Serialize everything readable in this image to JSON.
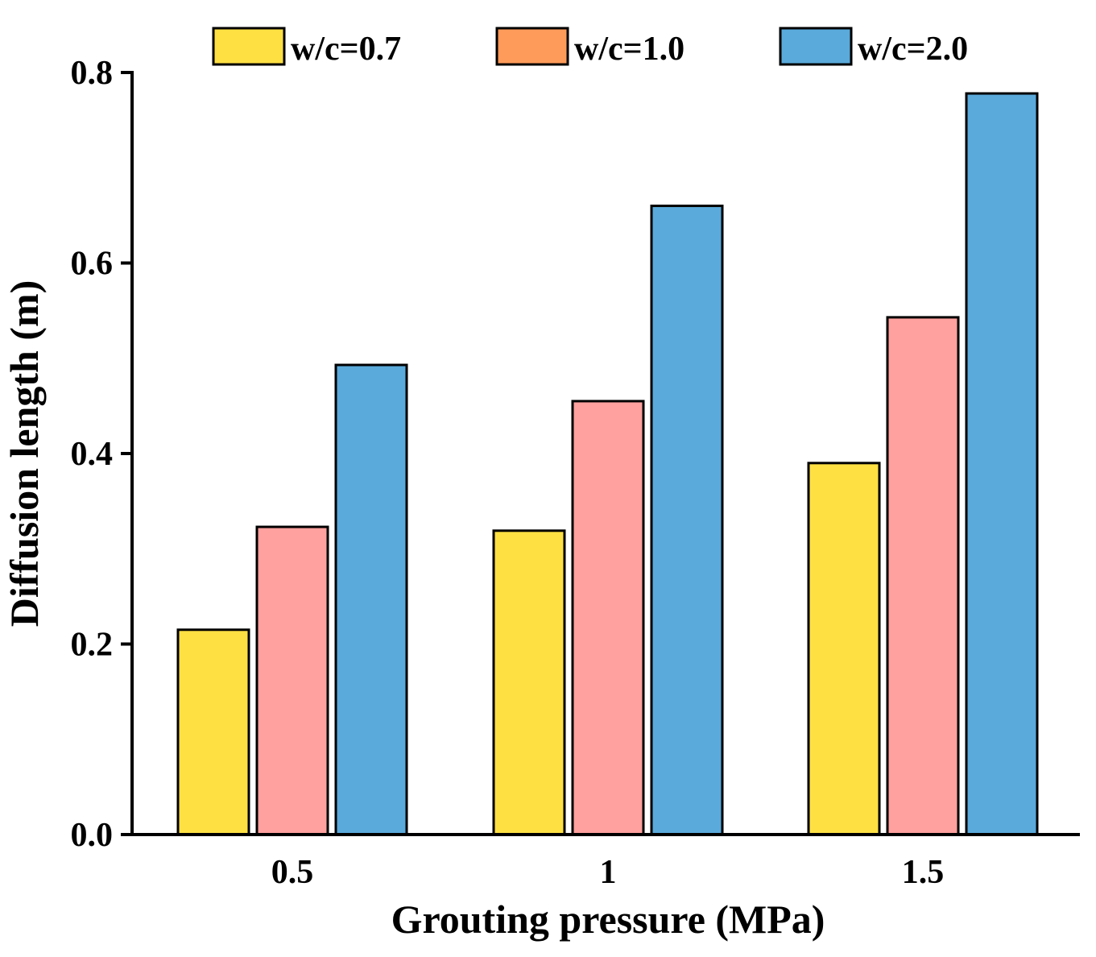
{
  "chart_data": {
    "type": "bar",
    "title": "",
    "xlabel": "Grouting pressure (MPa)",
    "ylabel": "Diffusion length (m)",
    "categories": [
      "0.5",
      "1",
      "1.5"
    ],
    "ylim": [
      0,
      0.8
    ],
    "yticks": [
      "0.0",
      "0.2",
      "0.4",
      "0.6",
      "0.8"
    ],
    "grid": false,
    "legend_position": "top",
    "series": [
      {
        "name": "w/c=0.7",
        "color": "#FFE043",
        "values": [
          0.215,
          0.319,
          0.39
        ]
      },
      {
        "name": "w/c=1.0",
        "color": "#FFA19E",
        "values": [
          0.323,
          0.455,
          0.543
        ]
      },
      {
        "name": "w/c=2.0",
        "color": "#5AAADB",
        "values": [
          0.493,
          0.66,
          0.778
        ]
      }
    ],
    "legend_swatch_colors": [
      "#FFE043",
      "#FF9B5A",
      "#5AAADB"
    ]
  }
}
